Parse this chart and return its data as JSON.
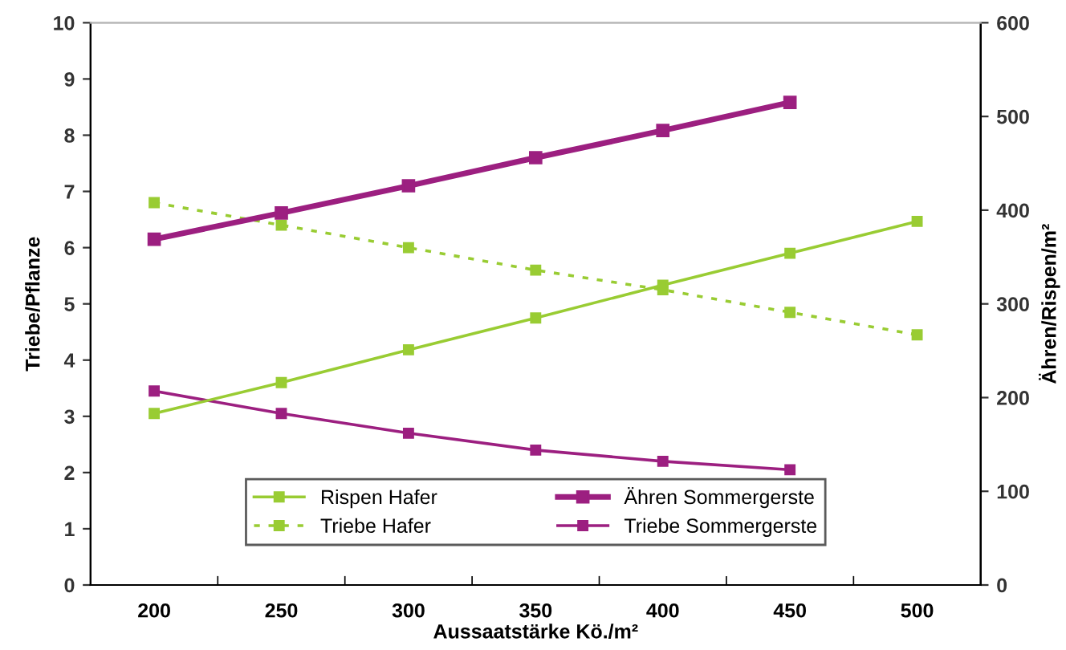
{
  "chart_data": {
    "type": "line",
    "xlabel": "Aussaatstärke Kö./m²",
    "ylabel": "Triebe/Pflanze",
    "y2label": "Ähren/Rispen/m²",
    "categories": [
      "200",
      "250",
      "300",
      "350",
      "400",
      "450",
      "500"
    ],
    "ylim": [
      0,
      10
    ],
    "yticks": [
      0,
      1,
      2,
      3,
      4,
      5,
      6,
      7,
      8,
      9,
      10
    ],
    "y2lim": [
      0,
      600
    ],
    "y2ticks": [
      0,
      100,
      200,
      300,
      400,
      500,
      600
    ],
    "marker": "square",
    "grid": false,
    "legend": "bottom",
    "series": [
      {
        "name": "Rispen Hafer",
        "color": "#99cc33",
        "axis": "y2",
        "line_style": "solid",
        "values": [
          183,
          216,
          251,
          285,
          320,
          354,
          388
        ]
      },
      {
        "name": "Triebe Hafer",
        "color": "#99cc33",
        "line_style": "dotted",
        "values": [
          6.8,
          6.4,
          6.0,
          5.6,
          5.25,
          4.85,
          4.45
        ]
      },
      {
        "name": "Ähren Sommergerste",
        "color": "#9c1f80",
        "axis": "y2",
        "line_style": "solid",
        "values": [
          369,
          397,
          426,
          456,
          485,
          515,
          null
        ]
      },
      {
        "name": "Triebe Sommergerste",
        "color": "#9c1f80",
        "line_style": "solid",
        "values": [
          3.45,
          3.05,
          2.7,
          2.4,
          2.2,
          2.05,
          null
        ]
      }
    ]
  }
}
